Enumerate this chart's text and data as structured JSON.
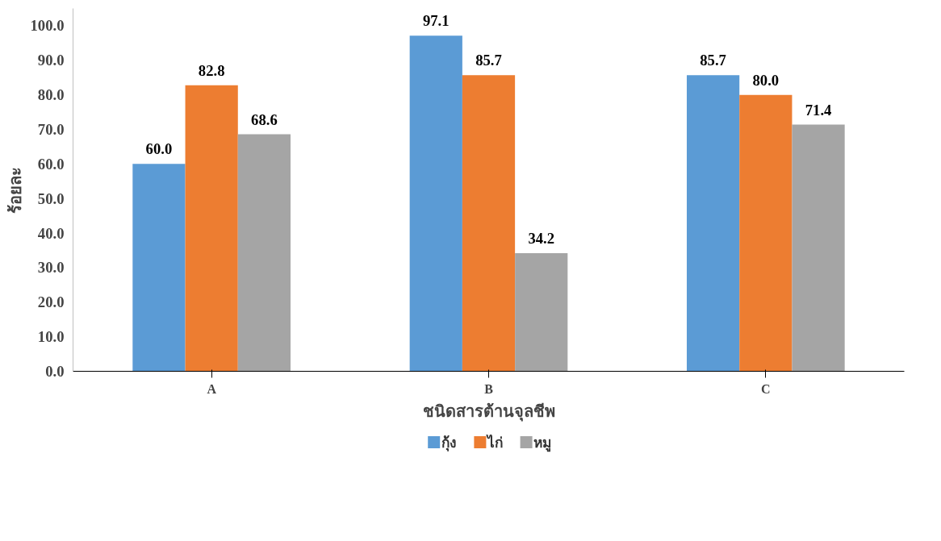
{
  "chart_data": {
    "type": "bar",
    "xlabel": "ชนิดสารต้านจุลชีพ",
    "ylabel": "ร้อยละ",
    "categories": [
      "A",
      "B",
      "C"
    ],
    "series": [
      {
        "name": "กุ้ง",
        "color": "#5b9bd5",
        "values": [
          60.0,
          97.1,
          85.7
        ],
        "value_labels": [
          "60.0",
          "97.1",
          "85.7"
        ]
      },
      {
        "name": "ไก่",
        "color": "#ed7d31",
        "values": [
          82.8,
          85.7,
          80.0
        ],
        "value_labels": [
          "82.8",
          "85.7",
          "80.0"
        ]
      },
      {
        "name": "หมู",
        "color": "#a5a5a5",
        "values": [
          68.6,
          34.2,
          71.4
        ],
        "value_labels": [
          "68.6",
          "34.2",
          "71.4"
        ]
      }
    ],
    "ylim": [
      0,
      105
    ],
    "yticks": [
      {
        "value": 0,
        "label": "0.0"
      },
      {
        "value": 10,
        "label": "10.0"
      },
      {
        "value": 20,
        "label": "20.0"
      },
      {
        "value": 30,
        "label": "30.0"
      },
      {
        "value": 40,
        "label": "40.0"
      },
      {
        "value": 50,
        "label": "50.0"
      },
      {
        "value": 60,
        "label": "60.0"
      },
      {
        "value": 70,
        "label": "70.0"
      },
      {
        "value": 80,
        "label": "80.0"
      },
      {
        "value": 90,
        "label": "90.0"
      },
      {
        "value": 100,
        "label": "100.0"
      }
    ],
    "grid": false,
    "legend": "bottom"
  }
}
